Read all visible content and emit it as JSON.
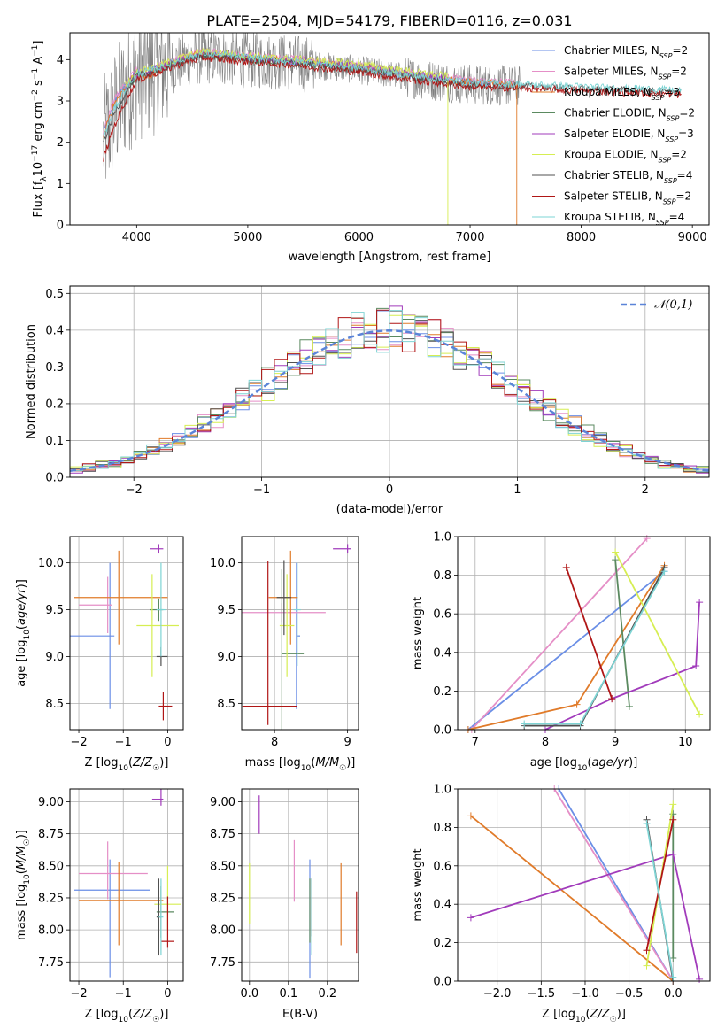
{
  "title": "PLATE=2504, MJD=54179, FIBERID=0116, z=0.031",
  "colors": [
    "#6a8ee6",
    "#e58fc7",
    "#e07b2a",
    "#5b8a60",
    "#a13bbb",
    "#d6ee52",
    "#505050",
    "#b01616",
    "#7ed4d4"
  ],
  "chart_data": [
    {
      "id": "spectrum",
      "type": "line",
      "xlabel": "wavelength [Angstrom, rest frame]",
      "ylabel": "Flux [f_λ 10^-17 erg cm^-2 s^-1 A^-1]",
      "xlim": [
        3400,
        9150
      ],
      "ylim": [
        0,
        4.65
      ],
      "xticks": [
        4000,
        5000,
        6000,
        7000,
        8000,
        9000
      ],
      "yticks": [
        0,
        1,
        2,
        3,
        4
      ],
      "grid": false,
      "legend_position": "top-right",
      "data_color": "#808080",
      "data_xrange": [
        3700,
        7450
      ],
      "series": [
        {
          "name": "Chabrier MILES, N_SSP=2",
          "x": [
            3700,
            3750,
            3800,
            3900,
            4000,
            4100,
            4200,
            4300,
            4400,
            4500,
            4600,
            4800,
            5000,
            5200,
            5500,
            6000,
            6500,
            7000,
            7400
          ],
          "y": [
            2.2,
            2.6,
            3.0,
            3.4,
            3.7,
            3.6,
            3.8,
            3.9,
            4.0,
            4.1,
            4.15,
            4.1,
            4.05,
            4.0,
            3.95,
            3.8,
            3.6,
            3.45,
            3.4
          ]
        },
        {
          "name": "Salpeter MILES, N_SSP=2",
          "x": [
            3700,
            3750,
            3800,
            3900,
            4000,
            4100,
            4200,
            4300,
            4400,
            4500,
            4600,
            4800,
            5000,
            5200,
            5500,
            6000,
            6500,
            7000,
            7400
          ],
          "y": [
            2.25,
            2.65,
            3.05,
            3.45,
            3.75,
            3.65,
            3.85,
            3.95,
            4.05,
            4.15,
            4.2,
            4.15,
            4.1,
            4.05,
            4.0,
            3.85,
            3.65,
            3.5,
            3.45
          ]
        },
        {
          "name": "Kroupa MILES, N_SSP=3",
          "x": [
            3700,
            3750,
            3800,
            3900,
            4000,
            4100,
            4200,
            4300,
            4400,
            4500,
            4600,
            4800,
            5000,
            5200,
            5500,
            6000,
            6500,
            7000,
            7400
          ],
          "y": [
            2.15,
            2.55,
            2.95,
            3.35,
            3.7,
            3.55,
            3.75,
            3.9,
            4.0,
            4.1,
            4.15,
            4.1,
            4.05,
            4.0,
            3.95,
            3.8,
            3.6,
            3.45,
            3.4
          ]
        },
        {
          "name": "Chabrier ELODIE, N_SSP=2",
          "x": [
            3900,
            4000,
            4200,
            4400,
            4600,
            4800,
            5000,
            5200,
            5500,
            6000,
            6500,
            6800
          ],
          "y": [
            3.3,
            3.6,
            3.75,
            3.95,
            4.1,
            4.05,
            4.0,
            3.95,
            3.9,
            3.8,
            3.6,
            3.5
          ]
        },
        {
          "name": "Salpeter ELODIE, N_SSP=3",
          "x": [
            3900,
            4000,
            4200,
            4400,
            4600,
            4800,
            5000,
            5200,
            5500,
            6000,
            6500,
            6800
          ],
          "y": [
            3.35,
            3.65,
            3.8,
            4.0,
            4.15,
            4.1,
            4.05,
            4.0,
            3.95,
            3.85,
            3.65,
            3.55
          ]
        },
        {
          "name": "Kroupa ELODIE, N_SSP=2",
          "x": [
            3900,
            4000,
            4200,
            4400,
            4600,
            4800,
            5000,
            5200,
            5500,
            6000,
            6500,
            6800
          ],
          "y": [
            3.4,
            3.7,
            3.85,
            4.05,
            4.2,
            4.15,
            4.1,
            4.05,
            4.0,
            3.9,
            3.7,
            3.6
          ]
        },
        {
          "name": "Chabrier STELIB, N_SSP=4",
          "x": [
            3700,
            3800,
            3900,
            4000,
            4200,
            4400,
            4600,
            4800,
            5000,
            5500,
            6000,
            6500,
            7000,
            7500,
            8000,
            8500,
            8900
          ],
          "y": [
            2.0,
            2.7,
            3.2,
            3.6,
            3.75,
            3.95,
            4.1,
            4.05,
            4.0,
            3.9,
            3.75,
            3.55,
            3.4,
            3.35,
            3.3,
            3.25,
            3.2
          ]
        },
        {
          "name": "Salpeter STELIB, N_SSP=2",
          "x": [
            3700,
            3800,
            3900,
            4000,
            4200,
            4400,
            4600,
            4800,
            5000,
            5500,
            6000,
            6500,
            7000,
            7500,
            8000,
            8500,
            8900
          ],
          "y": [
            1.6,
            2.4,
            3.0,
            3.5,
            3.7,
            3.9,
            4.05,
            4.0,
            3.95,
            3.85,
            3.7,
            3.5,
            3.35,
            3.3,
            3.25,
            3.2,
            3.15
          ]
        },
        {
          "name": "Kroupa STELIB, N_SSP=4",
          "x": [
            3700,
            3800,
            3900,
            4000,
            4200,
            4400,
            4600,
            4800,
            5000,
            5500,
            6000,
            6500,
            7000,
            7500,
            8000,
            8500,
            8900
          ],
          "y": [
            2.1,
            2.8,
            3.3,
            3.65,
            3.8,
            4.0,
            4.15,
            4.1,
            4.05,
            3.95,
            3.8,
            3.6,
            3.45,
            3.4,
            3.35,
            3.3,
            3.25
          ]
        }
      ]
    },
    {
      "id": "residuals",
      "type": "line",
      "xlabel": "(data-model)/error",
      "ylabel": "Normed distribution",
      "xlim": [
        -2.5,
        2.5
      ],
      "ylim": [
        0,
        0.52
      ],
      "xticks": [
        -2,
        -1,
        0,
        1,
        2
      ],
      "yticks": [
        0.0,
        0.1,
        0.2,
        0.3,
        0.4,
        0.5
      ],
      "grid": true,
      "legend_position": "top-right",
      "reference": {
        "name": "𝒩(0,1)",
        "color": "#5b84d8",
        "style": "dashed",
        "mean": 0,
        "sigma": 1
      },
      "bin_width": 0.1,
      "histogram_series_count": 9
    },
    {
      "id": "age_vs_Z",
      "type": "scatter",
      "xlabel": "Z [log10(Z/Z☉)]",
      "ylabel": "age [log10(age/yr)]",
      "xlim": [
        -2.2,
        0.35
      ],
      "ylim": [
        8.22,
        10.28
      ],
      "xticks": [
        -2,
        -1,
        0
      ],
      "yticks": [
        8.5,
        9.0,
        9.5,
        10.0
      ],
      "grid": true,
      "points": [
        {
          "x": -1.3,
          "y": 9.22,
          "xerr": [
            0.9,
            0.1
          ],
          "yerr": [
            0.78,
            0.78
          ]
        },
        {
          "x": -1.35,
          "y": 9.55,
          "xerr": [
            0.65,
            0.1
          ],
          "yerr": [
            0.3,
            0.3
          ]
        },
        {
          "x": -1.1,
          "y": 9.63,
          "xerr": [
            1.0,
            1.1
          ],
          "yerr": [
            0.5,
            0.5
          ]
        },
        {
          "x": -0.2,
          "y": 9.5,
          "xerr": [
            0.2,
            0.1
          ],
          "yerr": [
            0.12,
            0.12
          ]
        },
        {
          "x": -0.2,
          "y": 10.15,
          "xerr": [
            0.2,
            0.1
          ],
          "yerr": [
            0.05,
            0.05
          ]
        },
        {
          "x": -0.35,
          "y": 9.33,
          "xerr": [
            0.35,
            0.6
          ],
          "yerr": [
            0.55,
            0.55
          ]
        },
        {
          "x": -0.15,
          "y": 9.0,
          "xerr": [
            0.1,
            0.15
          ],
          "yerr": [
            0.1,
            0.1
          ]
        },
        {
          "x": -0.1,
          "y": 8.47,
          "xerr": [
            0.1,
            0.2
          ],
          "yerr": [
            0.15,
            0.15
          ]
        },
        {
          "x": -0.15,
          "y": 9.5,
          "xerr": [
            0.1,
            0.1
          ],
          "yerr": [
            0.5,
            0.5
          ]
        }
      ]
    },
    {
      "id": "age_vs_mass",
      "type": "scatter",
      "xlabel": "mass [log10(M/M☉)]",
      "ylabel": "",
      "xlim": [
        7.55,
        9.15
      ],
      "ylim": [
        8.22,
        10.28
      ],
      "xticks": [
        8,
        9
      ],
      "yticks": [
        8.5,
        9.0,
        9.5,
        10.0
      ],
      "grid": true,
      "points": [
        {
          "x": 8.3,
          "y": 9.22,
          "xerr": [
            0.0,
            0.05
          ],
          "yerr": [
            0.78,
            0.78
          ]
        },
        {
          "x": 8.1,
          "y": 9.47,
          "xerr": [
            0.6,
            0.6
          ],
          "yerr": [
            0.1,
            0.1
          ]
        },
        {
          "x": 8.22,
          "y": 9.63,
          "xerr": [
            0.3,
            0.1
          ],
          "yerr": [
            0.5,
            0.5
          ]
        },
        {
          "x": 8.1,
          "y": 9.03,
          "xerr": [
            0.0,
            0.3
          ],
          "yerr": [
            0.9,
            0.9
          ]
        },
        {
          "x": 9.0,
          "y": 10.15,
          "xerr": [
            0.2,
            0.05
          ],
          "yerr": [
            0.05,
            0.05
          ]
        },
        {
          "x": 8.17,
          "y": 9.33,
          "xerr": [
            0.1,
            0.1
          ],
          "yerr": [
            0.55,
            0.55
          ]
        },
        {
          "x": 8.13,
          "y": 9.63,
          "xerr": [
            0.1,
            0.1
          ],
          "yerr": [
            0.4,
            0.4
          ]
        },
        {
          "x": 7.91,
          "y": 8.47,
          "xerr": [
            0.35,
            0.4
          ],
          "yerr": [
            0.2,
            1.55
          ]
        },
        {
          "x": 8.31,
          "y": 9.5,
          "xerr": [
            0.05,
            0.05
          ],
          "yerr": [
            0.6,
            0.5
          ]
        }
      ]
    },
    {
      "id": "mass_weight_vs_age",
      "type": "line",
      "xlabel": "age [log10(age/yr)]",
      "ylabel": "mass weight",
      "xlim": [
        6.75,
        10.35
      ],
      "ylim": [
        0.0,
        1.0
      ],
      "xticks": [
        7,
        8,
        9,
        10
      ],
      "yticks": [
        0.0,
        0.2,
        0.4,
        0.6,
        0.8,
        1.0
      ],
      "grid": true,
      "series": [
        {
          "x": [
            6.9,
            9.7
          ],
          "y": [
            0.0,
            0.82
          ]
        },
        {
          "x": [
            6.95,
            9.45
          ],
          "y": [
            0.0,
            0.99
          ]
        },
        {
          "x": [
            6.9,
            8.45,
            9.7
          ],
          "y": [
            0.0,
            0.13,
            0.85
          ]
        },
        {
          "x": [
            9.0,
            9.2
          ],
          "y": [
            0.88,
            0.12
          ]
        },
        {
          "x": [
            8.0,
            8.95,
            10.15,
            10.2
          ],
          "y": [
            0.0,
            0.16,
            0.33,
            0.66
          ]
        },
        {
          "x": [
            9.0,
            10.2
          ],
          "y": [
            0.92,
            0.08
          ]
        },
        {
          "x": [
            7.7,
            8.5,
            9.7
          ],
          "y": [
            0.02,
            0.02,
            0.84
          ]
        },
        {
          "x": [
            8.3,
            8.95
          ],
          "y": [
            0.84,
            0.16
          ]
        },
        {
          "x": [
            7.7,
            8.5,
            9.7
          ],
          "y": [
            0.03,
            0.03,
            0.82
          ]
        }
      ]
    },
    {
      "id": "mass_vs_Z",
      "type": "scatter",
      "xlabel": "Z [log10(Z/Z☉)]",
      "ylabel": "mass [log10(M/M☉)]",
      "xlim": [
        -2.2,
        0.35
      ],
      "ylim": [
        7.6,
        9.1
      ],
      "xticks": [
        -2,
        -1,
        0
      ],
      "yticks": [
        7.75,
        8.0,
        8.25,
        8.5,
        8.75,
        9.0
      ],
      "grid": true,
      "points": [
        {
          "x": -1.3,
          "y": 8.31,
          "xerr": [
            0.8,
            0.9
          ],
          "yerr": [
            0.68,
            0.24
          ]
        },
        {
          "x": -1.35,
          "y": 8.44,
          "xerr": [
            0.65,
            0.9
          ],
          "yerr": [
            0.2,
            0.25
          ]
        },
        {
          "x": -1.1,
          "y": 8.23,
          "xerr": [
            0.9,
            1.0
          ],
          "yerr": [
            0.35,
            0.3
          ]
        },
        {
          "x": -0.15,
          "y": 8.14,
          "xerr": [
            0.1,
            0.3
          ],
          "yerr": [
            0.2,
            0.2
          ]
        },
        {
          "x": -0.15,
          "y": 9.02,
          "xerr": [
            0.2,
            0.05
          ],
          "yerr": [
            0.05,
            0.27
          ]
        },
        {
          "x": 0.0,
          "y": 8.2,
          "xerr": [
            0.3,
            0.3
          ],
          "yerr": [
            0.2,
            0.3
          ]
        },
        {
          "x": -0.2,
          "y": 8.1,
          "xerr": [
            0.05,
            0.05
          ],
          "yerr": [
            0.3,
            0.3
          ]
        },
        {
          "x": 0.0,
          "y": 7.91,
          "xerr": [
            0.15,
            0.15
          ],
          "yerr": [
            0.05,
            0.35
          ]
        },
        {
          "x": -0.15,
          "y": 8.1,
          "xerr": [
            0.05,
            0.05
          ],
          "yerr": [
            0.3,
            0.3
          ]
        }
      ]
    },
    {
      "id": "mass_vs_EBV",
      "type": "scatter",
      "xlabel": "E(B-V)",
      "ylabel": "",
      "xlim": [
        -0.02,
        0.28
      ],
      "ylim": [
        7.6,
        9.1
      ],
      "xticks": [
        0.0,
        0.1,
        0.2
      ],
      "yticks": [
        7.75,
        8.0,
        8.25,
        8.5,
        8.75,
        9.0
      ],
      "grid": true,
      "vbars": [
        {
          "x": 0.155,
          "y": [
            7.62,
            8.55
          ]
        },
        {
          "x": 0.115,
          "y": [
            8.22,
            8.7
          ]
        },
        {
          "x": 0.235,
          "y": [
            7.88,
            8.52
          ]
        },
        {
          "x": 0.155,
          "y": [
            7.9,
            8.4
          ]
        },
        {
          "x": 0.025,
          "y": [
            8.75,
            9.05
          ]
        },
        {
          "x": 0.0,
          "y": [
            8.05,
            8.52
          ]
        },
        {
          "x": 0.16,
          "y": [
            7.95,
            8.4
          ]
        },
        {
          "x": 0.275,
          "y": [
            7.82,
            8.3
          ]
        },
        {
          "x": 0.16,
          "y": [
            7.8,
            8.4
          ]
        }
      ]
    },
    {
      "id": "mass_weight_vs_Z",
      "type": "line",
      "xlabel": "Z [log10(Z/Z☉)]",
      "ylabel": "mass weight",
      "xlim": [
        -2.45,
        0.42
      ],
      "ylim": [
        0.0,
        1.0
      ],
      "xticks": [
        -2.0,
        -1.5,
        -1.0,
        -0.5,
        0.0
      ],
      "yticks": [
        0.0,
        0.2,
        0.4,
        0.6,
        0.8,
        1.0
      ],
      "grid": true,
      "series": [
        {
          "x": [
            -1.3,
            0.0
          ],
          "y": [
            1.0,
            0.0
          ]
        },
        {
          "x": [
            -1.35,
            0.0
          ],
          "y": [
            1.0,
            0.0
          ]
        },
        {
          "x": [
            -2.3,
            0.0
          ],
          "y": [
            0.86,
            0.0
          ]
        },
        {
          "x": [
            0.0,
            0.0
          ],
          "y": [
            0.87,
            0.12
          ]
        },
        {
          "x": [
            -2.3,
            0.0,
            0.3
          ],
          "y": [
            0.33,
            0.66,
            0.01
          ]
        },
        {
          "x": [
            -0.3,
            0.0
          ],
          "y": [
            0.08,
            0.92
          ]
        },
        {
          "x": [
            -0.3,
            0.0
          ],
          "y": [
            0.84,
            0.0
          ]
        },
        {
          "x": [
            -0.3,
            0.0
          ],
          "y": [
            0.16,
            0.84
          ]
        },
        {
          "x": [
            -0.3,
            0.0
          ],
          "y": [
            0.82,
            0.02
          ]
        }
      ]
    }
  ]
}
